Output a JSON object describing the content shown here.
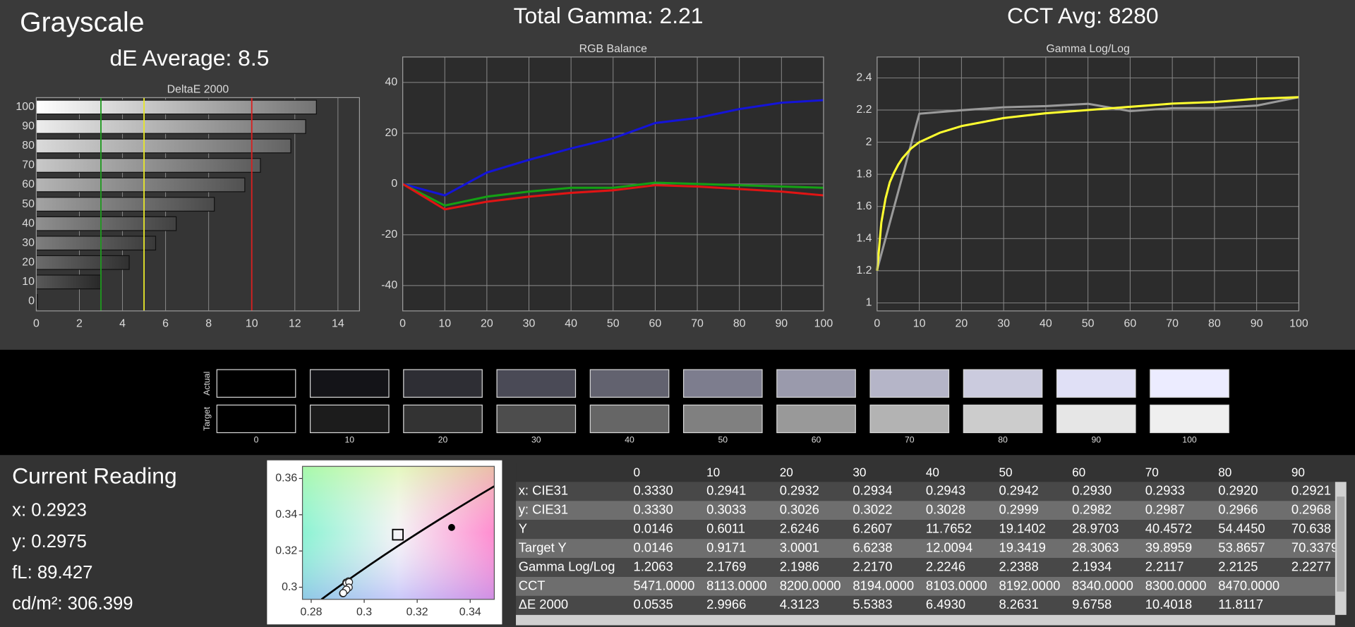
{
  "header": {
    "title": "Grayscale",
    "de_average": "dE Average: 8.5",
    "total_gamma": "Total Gamma: 2.21",
    "cct_avg": "CCT Avg: 8280"
  },
  "chart_data": [
    {
      "type": "bar",
      "orientation": "horizontal",
      "title": "DeltaE 2000",
      "categories": [
        "0",
        "10",
        "20",
        "30",
        "40",
        "50",
        "60",
        "70",
        "80",
        "90",
        "100"
      ],
      "values": [
        0.0535,
        2.9966,
        4.3123,
        5.5383,
        6.493,
        8.2631,
        9.6758,
        10.4018,
        11.8117,
        12.5,
        13.0
      ],
      "xlim": [
        0,
        15
      ],
      "xticks": [
        0,
        2,
        4,
        6,
        8,
        10,
        12,
        14
      ],
      "grid": true,
      "reference_lines": [
        {
          "value": 3,
          "color": "#1f9a1f"
        },
        {
          "value": 5,
          "color": "#e6e62a"
        },
        {
          "value": 10,
          "color": "#d82020"
        }
      ]
    },
    {
      "type": "line",
      "title": "RGB Balance",
      "x": [
        0,
        10,
        20,
        30,
        40,
        50,
        60,
        70,
        80,
        90,
        100
      ],
      "series": [
        {
          "color": "#1414d8",
          "values": [
            0,
            -4.5,
            4.5,
            9.5,
            14,
            18,
            24,
            26,
            29.5,
            32,
            33
          ]
        },
        {
          "color": "#14a014",
          "values": [
            0,
            -8.5,
            -5,
            -3,
            -1.5,
            -1.5,
            0.5,
            0,
            -0.5,
            -1,
            -1.5
          ]
        },
        {
          "color": "#e01414",
          "values": [
            0,
            -10,
            -7,
            -5,
            -3.5,
            -2.5,
            -0.5,
            -1,
            -2,
            -3,
            -4.5
          ]
        }
      ],
      "xlim": [
        0,
        100
      ],
      "xticks": [
        0,
        10,
        20,
        30,
        40,
        50,
        60,
        70,
        80,
        90,
        100
      ],
      "ylim": [
        -50,
        50
      ],
      "yticks": [
        -40,
        -20,
        0,
        20,
        40
      ],
      "grid": true
    },
    {
      "type": "line",
      "title": "Gamma Log/Log",
      "series": [
        {
          "color": "#9a9a9a",
          "x": [
            0,
            10,
            20,
            30,
            40,
            50,
            60,
            70,
            80,
            90,
            100
          ],
          "values": [
            1.2063,
            2.1769,
            2.1986,
            2.217,
            2.2246,
            2.2388,
            2.1934,
            2.2117,
            2.2125,
            2.2277,
            2.28
          ]
        },
        {
          "color": "#ffff30",
          "x": [
            0,
            1,
            2,
            3,
            4,
            5,
            6,
            8,
            10,
            15,
            20,
            30,
            40,
            50,
            60,
            70,
            80,
            90,
            100
          ],
          "values": [
            1.2,
            1.5,
            1.65,
            1.75,
            1.81,
            1.86,
            1.9,
            1.96,
            2.0,
            2.06,
            2.1,
            2.15,
            2.18,
            2.2,
            2.22,
            2.24,
            2.25,
            2.27,
            2.28
          ]
        }
      ],
      "xlim": [
        0,
        100
      ],
      "xticks": [
        0,
        10,
        20,
        30,
        40,
        50,
        60,
        70,
        80,
        90,
        100
      ],
      "ylim": [
        0.95,
        2.53
      ],
      "yticks": [
        1,
        1.2,
        1.4,
        1.6,
        1.8,
        2,
        2.2,
        2.4
      ],
      "grid": true
    },
    {
      "type": "scatter",
      "series": [
        {
          "marker": "circle",
          "color": "#ffffff",
          "x": [
            0.2941,
            0.2932,
            0.2934,
            0.2943,
            0.2942,
            0.293,
            0.2933,
            0.292,
            0.2921
          ],
          "values": [
            0.3033,
            0.3026,
            0.3022,
            0.3028,
            0.2999,
            0.2982,
            0.2987,
            0.2966,
            0.2968
          ]
        },
        {
          "marker": "square",
          "color": "#000000",
          "x": [
            0.3127
          ],
          "values": [
            0.329
          ]
        },
        {
          "marker": "dot",
          "color": "#000000",
          "x": [
            0.333
          ],
          "values": [
            0.333
          ]
        }
      ],
      "xlim": [
        0.2767,
        0.3491
      ],
      "xticks": [
        0.28,
        0.3,
        0.32,
        0.34
      ],
      "ylim": [
        0.2933,
        0.3667
      ],
      "yticks": [
        0.3,
        0.32,
        0.34,
        0.36
      ],
      "grid": false
    }
  ],
  "swatches": {
    "row_labels": [
      "Actual",
      "Target"
    ],
    "categories": [
      "0",
      "10",
      "20",
      "30",
      "40",
      "50",
      "60",
      "70",
      "80",
      "90",
      "100"
    ],
    "actual": [
      "#000000",
      "#141418",
      "#2e2e34",
      "#4a4a56",
      "#62626f",
      "#7d7d8e",
      "#9a9aac",
      "#b5b5c8",
      "#cbcbde",
      "#e0e0f6",
      "#ececff"
    ],
    "target": [
      "#000000",
      "#1c1c1c",
      "#333333",
      "#4d4d4d",
      "#666666",
      "#808080",
      "#999999",
      "#b3b3b3",
      "#cccccc",
      "#e6e6e6",
      "#efefef"
    ]
  },
  "current_reading": {
    "title": "Current Reading",
    "lines": [
      "x: 0.2923",
      "y: 0.2975",
      "fL: 89.427",
      "cd/m²: 306.399"
    ]
  },
  "table": {
    "columns": [
      "0",
      "10",
      "20",
      "30",
      "40",
      "50",
      "60",
      "70",
      "80",
      "90"
    ],
    "rows": [
      {
        "label": "x: CIE31",
        "cells": [
          "0.3330",
          "0.2941",
          "0.2932",
          "0.2934",
          "0.2943",
          "0.2942",
          "0.2930",
          "0.2933",
          "0.2920",
          "0.2921"
        ]
      },
      {
        "label": "y: CIE31",
        "cells": [
          "0.3330",
          "0.3033",
          "0.3026",
          "0.3022",
          "0.3028",
          "0.2999",
          "0.2982",
          "0.2987",
          "0.2966",
          "0.2968"
        ]
      },
      {
        "label": "Y",
        "cells": [
          "0.0146",
          "0.6011",
          "2.6246",
          "6.2607",
          "11.7652",
          "19.1402",
          "28.9703",
          "40.4572",
          "54.4450",
          "70.638"
        ]
      },
      {
        "label": "Target Y",
        "cells": [
          "0.0146",
          "0.9171",
          "3.0001",
          "6.6238",
          "12.0094",
          "19.3419",
          "28.3063",
          "39.8959",
          "53.8657",
          "70.3379"
        ]
      },
      {
        "label": "Gamma Log/Log",
        "cells": [
          "1.2063",
          "2.1769",
          "2.1986",
          "2.2170",
          "2.2246",
          "2.2388",
          "2.1934",
          "2.2117",
          "2.2125",
          "2.2277"
        ]
      },
      {
        "label": "CCT",
        "cells": [
          "5471.0000",
          "8113.0000",
          "8200.0000",
          "8194.0000",
          "8103.0000",
          "8192.0000",
          "8340.0000",
          "8300.0000",
          "8470.0000",
          null
        ]
      },
      {
        "label": "ΔE 2000",
        "cells": [
          "0.0535",
          "2.9966",
          "4.3123",
          "5.5383",
          "6.4930",
          "8.2631",
          "9.6758",
          "10.4018",
          "11.8117",
          null
        ]
      }
    ]
  }
}
